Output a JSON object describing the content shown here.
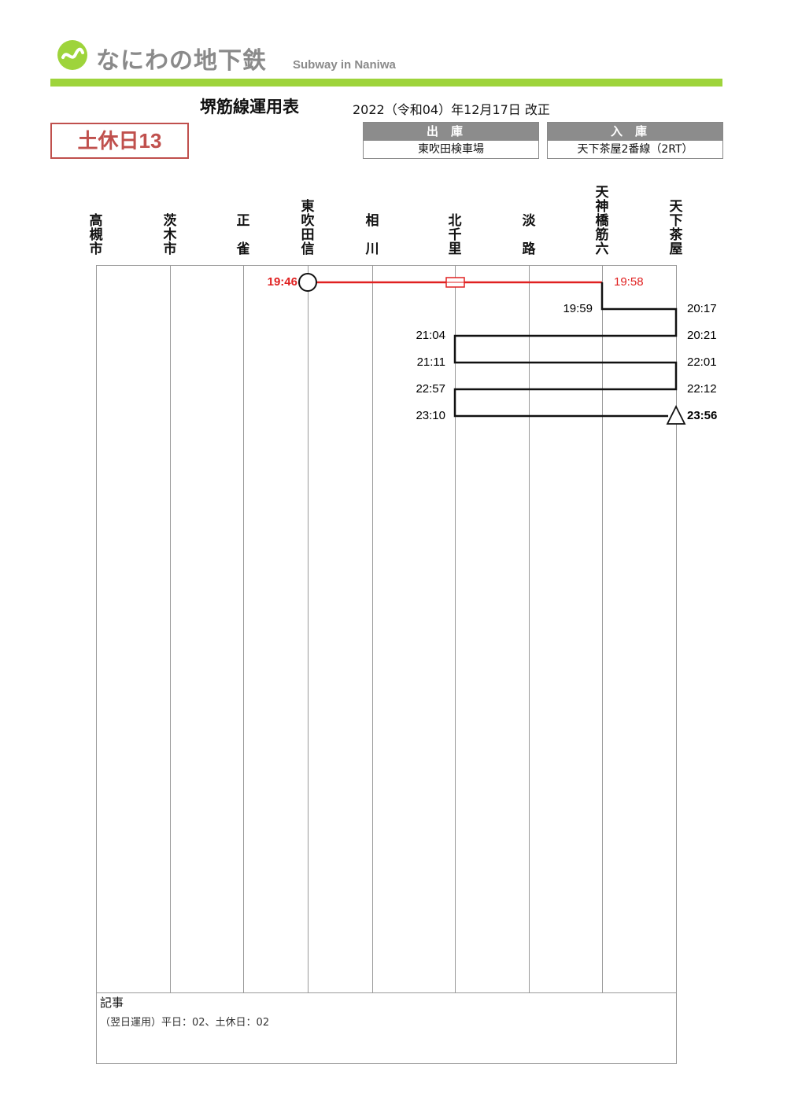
{
  "header": {
    "logo_name": "なにわの地下鉄",
    "logo_subtitle": "Subway in Naniwa",
    "brand_color": "#9ed43b",
    "logo_icon": "tilde-circle-logo-icon"
  },
  "document": {
    "title": "堺筋線運用表",
    "revision": "2022（令和04）年12月17日 改正",
    "operation_label": "土休日13",
    "operation_color": "#c0504d"
  },
  "depot": {
    "out_label": "出庫",
    "out_value": "東吹田検車場",
    "in_label": "入庫",
    "in_value": "天下茶屋2番線（2RT）"
  },
  "stations": [
    {
      "name": "高槻市"
    },
    {
      "name": "茨木市"
    },
    {
      "name": "正　雀"
    },
    {
      "name": "東吹田信"
    },
    {
      "name": "相　川"
    },
    {
      "name": "北千里"
    },
    {
      "name": "淡　路"
    },
    {
      "name": "天神橋筋六"
    },
    {
      "name": "天下茶屋"
    }
  ],
  "runs": [
    {
      "from": "19:46",
      "to": "19:58",
      "deadhead": true
    },
    {
      "from": "19:59",
      "to": "20:17"
    },
    {
      "from": "20:21",
      "to": "21:04"
    },
    {
      "from": "21:11",
      "to": "22:01"
    },
    {
      "from": "22:12",
      "to": "22:57"
    },
    {
      "from": "23:10",
      "to": "23:56",
      "final": true
    }
  ],
  "deadhead_color": "#e02020",
  "notes": {
    "title": "記事",
    "text": "（翌日運用）平日：02、土休日：02"
  }
}
